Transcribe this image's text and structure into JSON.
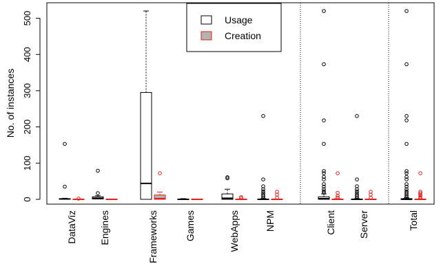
{
  "chart_data": {
    "type": "boxplot",
    "ylabel": "No. of instances",
    "ylim": [
      0,
      520
    ],
    "yticks": [
      0,
      100,
      200,
      300,
      400,
      500
    ],
    "grid": false,
    "legend_position": "top-center",
    "series": [
      {
        "name": "Usage",
        "fill": "#ffffff",
        "stroke": "#000000"
      },
      {
        "name": "Creation",
        "fill": "#b3b3b3",
        "stroke": "#e0201b"
      }
    ],
    "groups": [
      {
        "label": "DataViz",
        "usage": {
          "q1": 0,
          "median": 1,
          "q3": 2,
          "whisker_low": 0,
          "whisker_high": 3,
          "outliers": [
            35,
            153
          ]
        },
        "creation": {
          "q1": 0,
          "median": 0,
          "q3": 1,
          "whisker_low": 0,
          "whisker_high": 1,
          "outliers": [
            2
          ]
        }
      },
      {
        "label": "Engines",
        "usage": {
          "q1": 1,
          "median": 3,
          "q3": 7,
          "whisker_low": 0,
          "whisker_high": 10,
          "outliers": [
            17,
            79
          ]
        },
        "creation": {
          "q1": 0,
          "median": 0,
          "q3": 1,
          "whisker_low": 0,
          "whisker_high": 1,
          "outliers": []
        }
      },
      {
        "label": "Frameworks",
        "usage": {
          "q1": 0,
          "median": 44,
          "q3": 295,
          "whisker_low": 0,
          "whisker_high": 520,
          "outliers": []
        },
        "creation": {
          "q1": 0,
          "median": 2,
          "q3": 12,
          "whisker_low": 0,
          "whisker_high": 20,
          "outliers": [
            72
          ]
        }
      },
      {
        "label": "Games",
        "usage": {
          "q1": 0,
          "median": 0,
          "q3": 1,
          "whisker_low": 0,
          "whisker_high": 2,
          "outliers": []
        },
        "creation": {
          "q1": 0,
          "median": 0,
          "q3": 1,
          "whisker_low": 0,
          "whisker_high": 1,
          "outliers": []
        }
      },
      {
        "label": "WebApps",
        "usage": {
          "q1": 0,
          "median": 3,
          "q3": 15,
          "whisker_low": 0,
          "whisker_high": 28,
          "outliers": [
            58,
            61
          ]
        },
        "creation": {
          "q1": 0,
          "median": 0,
          "q3": 1,
          "whisker_low": 0,
          "whisker_high": 1,
          "outliers": [
            3,
            6
          ]
        }
      },
      {
        "label": "NPM",
        "usage": {
          "q1": 0,
          "median": 0,
          "q3": 1,
          "whisker_low": 0,
          "whisker_high": 2,
          "outliers": [
            4,
            8,
            12,
            17,
            22,
            28,
            36,
            55,
            230
          ]
        },
        "creation": {
          "q1": 0,
          "median": 0,
          "q3": 1,
          "whisker_low": 0,
          "whisker_high": 1,
          "outliers": [
            5,
            13,
            21
          ]
        }
      },
      {
        "label": "Client",
        "usage": {
          "q1": 0,
          "median": 2,
          "q3": 7,
          "whisker_low": 0,
          "whisker_high": 15,
          "outliers": [
            18,
            22,
            28,
            35,
            42,
            55,
            62,
            72,
            78,
            153,
            218,
            373,
            520
          ]
        },
        "creation": {
          "q1": 0,
          "median": 0,
          "q3": 1,
          "whisker_low": 0,
          "whisker_high": 2,
          "outliers": [
            5,
            10,
            18,
            72
          ]
        }
      },
      {
        "label": "Server",
        "usage": {
          "q1": 0,
          "median": 0,
          "q3": 1,
          "whisker_low": 0,
          "whisker_high": 2,
          "outliers": [
            4,
            8,
            12,
            17,
            22,
            28,
            36,
            55,
            230
          ]
        },
        "creation": {
          "q1": 0,
          "median": 0,
          "q3": 1,
          "whisker_low": 0,
          "whisker_high": 1,
          "outliers": [
            5,
            13,
            21
          ]
        }
      },
      {
        "label": "Total",
        "usage": {
          "q1": 0,
          "median": 0,
          "q3": 2,
          "whisker_low": 0,
          "whisker_high": 4,
          "outliers": [
            6,
            10,
            14,
            18,
            22,
            28,
            35,
            42,
            55,
            62,
            72,
            78,
            153,
            218,
            230,
            373,
            520
          ]
        },
        "creation": {
          "q1": 0,
          "median": 0,
          "q3": 1,
          "whisker_low": 0,
          "whisker_high": 1,
          "outliers": [
            3,
            6,
            10,
            13,
            17,
            21,
            72
          ]
        }
      }
    ],
    "separators_after": [
      "NPM",
      "Server"
    ]
  }
}
